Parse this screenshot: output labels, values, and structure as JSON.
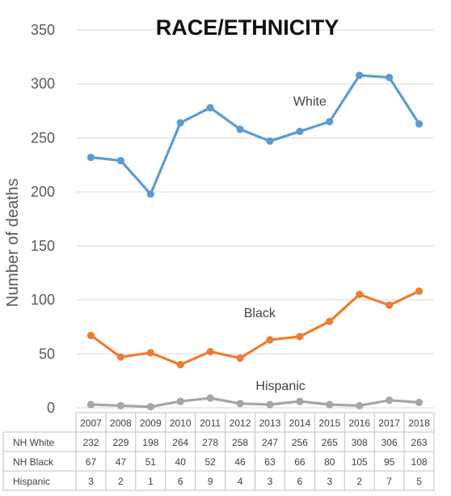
{
  "chart_data": {
    "type": "line",
    "title": "RACE/ETHNICITY",
    "ylabel": "Number of deaths",
    "xlabel": "",
    "ylim": [
      0,
      350
    ],
    "yticks": [
      0,
      50,
      100,
      150,
      200,
      250,
      300,
      350
    ],
    "grid": true,
    "legend": "data table below chart",
    "categories": [
      "2007",
      "2008",
      "2009",
      "2010",
      "2011",
      "2012",
      "2013",
      "2014",
      "2015",
      "2016",
      "2017",
      "2018"
    ],
    "series": [
      {
        "name": "White",
        "table_label": "NH White",
        "color": "#5b9bd5",
        "values": [
          232,
          229,
          198,
          264,
          278,
          258,
          247,
          256,
          265,
          308,
          306,
          263
        ]
      },
      {
        "name": "Black",
        "table_label": "NH Black",
        "color": "#ed7d31",
        "values": [
          67,
          47,
          51,
          40,
          52,
          46,
          63,
          66,
          80,
          105,
          95,
          108
        ]
      },
      {
        "name": "Hispanic",
        "table_label": "Hispanic",
        "color": "#a5a5a5",
        "values": [
          3,
          2,
          1,
          6,
          9,
          4,
          3,
          6,
          3,
          2,
          7,
          5
        ]
      }
    ]
  }
}
